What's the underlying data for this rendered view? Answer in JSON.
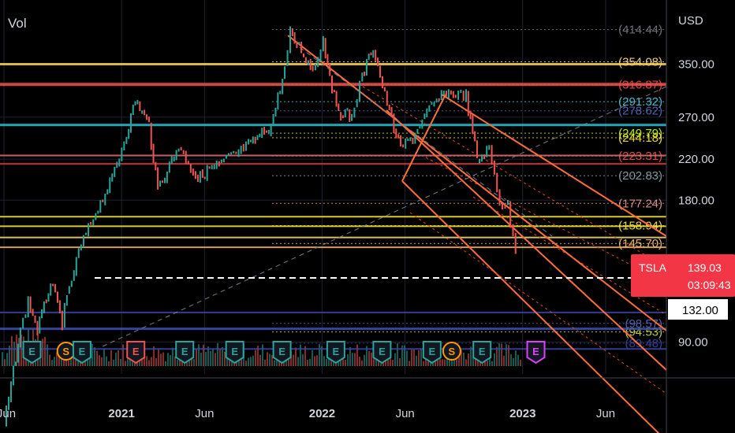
{
  "panel": {
    "vol_label": "Vol",
    "currency": "USD"
  },
  "ticker_tag": {
    "symbol": "TSLA",
    "price": "139.03",
    "countdown": "03:09:43",
    "color": "#f23645"
  },
  "crosshair_price": "132.00",
  "chart_data": {
    "type": "line",
    "title": "",
    "series": [
      {
        "name": "TSLA",
        "x": [
          "2020-06-01",
          "2020-07-01",
          "2020-07-15",
          "2020-08-01",
          "2020-08-25",
          "2020-09-15",
          "2020-10-15",
          "2020-11-15",
          "2020-12-15",
          "2021-01-10",
          "2021-01-26",
          "2021-02-20",
          "2021-03-08",
          "2021-04-15",
          "2021-05-20",
          "2021-06-10",
          "2021-07-15",
          "2021-08-20",
          "2021-09-30",
          "2021-10-25",
          "2021-11-04",
          "2021-11-20",
          "2021-12-15",
          "2022-01-03",
          "2022-01-27",
          "2022-02-24",
          "2022-03-15",
          "2022-04-04",
          "2022-04-25",
          "2022-05-24",
          "2022-06-15",
          "2022-07-15",
          "2022-08-15",
          "2022-09-01",
          "2022-09-20",
          "2022-10-10",
          "2022-11-01",
          "2022-11-20",
          "2022-12-05",
          "2022-12-19"
        ],
        "values": [
          60,
          95,
          110,
          95,
          120,
          100,
          140,
          170,
          200,
          250,
          293,
          260,
          190,
          235,
          200,
          210,
          220,
          235,
          260,
          340,
          407,
          380,
          340,
          395,
          280,
          270,
          330,
          381,
          300,
          230,
          245,
          280,
          305,
          300,
          300,
          220,
          230,
          180,
          175,
          139
        ]
      }
    ],
    "x_ticks": [
      "Jun",
      "2021",
      "Jun",
      "2022",
      "Jun",
      "2023",
      "Jun"
    ],
    "y_ticks": [
      "350.00",
      "270.00",
      "220.00",
      "180.00",
      "90.00"
    ],
    "y_scale": "log",
    "ylim": [
      80,
      440
    ],
    "levels": [
      {
        "label": "(414.44)",
        "value": 414.44,
        "color": "#787b86"
      },
      {
        "label": "(354.08)",
        "value": 354.08,
        "color": "#ffe082"
      },
      {
        "label": "(316.87)",
        "value": 316.87,
        "color": "#ef5350"
      },
      {
        "label": "(291.32)",
        "value": 291.32,
        "color": "#4dd0e1"
      },
      {
        "label": "(278.62)",
        "value": 278.62,
        "color": "#5c6bc0"
      },
      {
        "label": "(249.79)",
        "value": 249.79,
        "color": "#c6ff00"
      },
      {
        "label": "(244.18)",
        "value": 244.18,
        "color": "#ffeb3b"
      },
      {
        "label": "(223.31)",
        "value": 223.31,
        "color": "#ef5350"
      },
      {
        "label": "(202.83)",
        "value": 202.83,
        "color": "#90a4ae"
      },
      {
        "label": "(177.24)",
        "value": 177.24,
        "color": "#ef9a9a"
      },
      {
        "label": "(158.94)",
        "value": 158.94,
        "color": "#ffeb3b"
      },
      {
        "label": "(145.70)",
        "value": 145.7,
        "color": "#ffcc80"
      },
      {
        "label": "(98.57)",
        "value": 98.57,
        "color": "#5c6bc0"
      },
      {
        "label": "(94.53)",
        "value": 94.53,
        "color": "#cddc39"
      },
      {
        "label": "(89.48)",
        "value": 89.48,
        "color": "#3949ab"
      }
    ],
    "earnings_markers": [
      {
        "label": "E",
        "date": "2020-07-22",
        "color": "#26a69a"
      },
      {
        "label": "S",
        "date": "2020-09-22",
        "color": "#ff9800"
      },
      {
        "label": "E",
        "date": "2020-10-21",
        "color": "#26a69a"
      },
      {
        "label": "E",
        "date": "2021-01-27",
        "color": "#ef5350"
      },
      {
        "label": "E",
        "date": "2021-04-26",
        "color": "#26a69a"
      },
      {
        "label": "E",
        "date": "2021-07-26",
        "color": "#26a69a"
      },
      {
        "label": "E",
        "date": "2021-10-20",
        "color": "#26a69a"
      },
      {
        "label": "E",
        "date": "2022-01-26",
        "color": "#26a69a"
      },
      {
        "label": "E",
        "date": "2022-04-20",
        "color": "#26a69a"
      },
      {
        "label": "E",
        "date": "2022-07-20",
        "color": "#26a69a"
      },
      {
        "label": "S",
        "date": "2022-08-25",
        "color": "#ff9800"
      },
      {
        "label": "E",
        "date": "2022-10-19",
        "color": "#26a69a"
      },
      {
        "label": "E",
        "date": "2023-01-25",
        "color": "#e040fb"
      }
    ]
  }
}
